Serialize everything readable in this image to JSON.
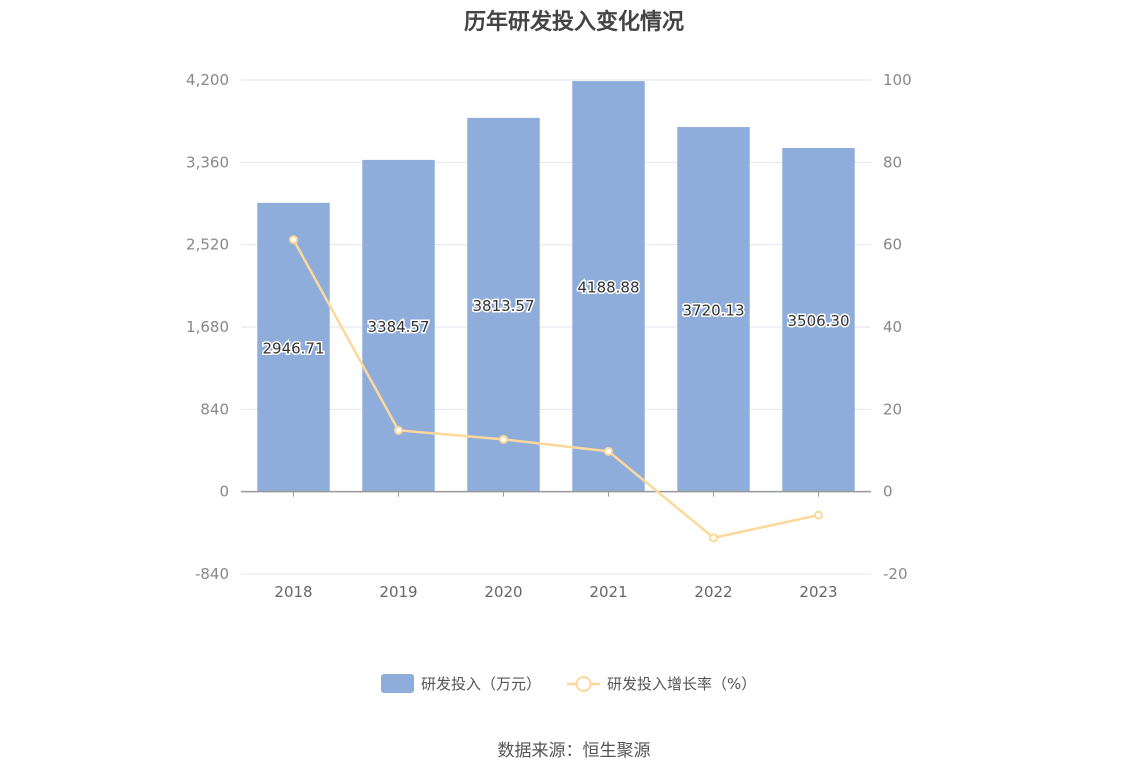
{
  "chart_data": {
    "type": "bar",
    "title": "历年研发投入变化情况",
    "categories": [
      "2018",
      "2019",
      "2020",
      "2021",
      "2022",
      "2023"
    ],
    "series": [
      {
        "name": "研发投入（万元）",
        "type": "bar",
        "axis": "left",
        "values": [
          2946.71,
          3384.57,
          3813.57,
          4188.88,
          3720.13,
          3506.3
        ],
        "labels": [
          "2946.71",
          "3384.57",
          "3813.57",
          "4188.88",
          "3720.13",
          "3506.30"
        ]
      },
      {
        "name": "研发投入增长率（%）",
        "type": "line",
        "axis": "right",
        "values": [
          61.2,
          14.9,
          12.7,
          9.8,
          -11.2,
          -5.7
        ]
      }
    ],
    "y_left": {
      "min": -840,
      "max": 4200,
      "ticks": [
        -840,
        0,
        840,
        1680,
        2520,
        3360,
        4200
      ],
      "tick_labels": [
        "-840",
        "0",
        "840",
        "1,680",
        "2,520",
        "3,360",
        "4,200"
      ]
    },
    "y_right": {
      "min": -20,
      "max": 100,
      "ticks": [
        -20,
        0,
        20,
        40,
        60,
        80,
        100
      ],
      "tick_labels": [
        "-20",
        "0",
        "20",
        "40",
        "60",
        "80",
        "100"
      ]
    },
    "grid": true,
    "legend_position": "bottom",
    "colors": {
      "bar": "#8eaddb",
      "line": "#fdd89a",
      "grid": "#e3e6ef",
      "axis": "#999999"
    }
  },
  "source": "数据来源：恒生聚源"
}
